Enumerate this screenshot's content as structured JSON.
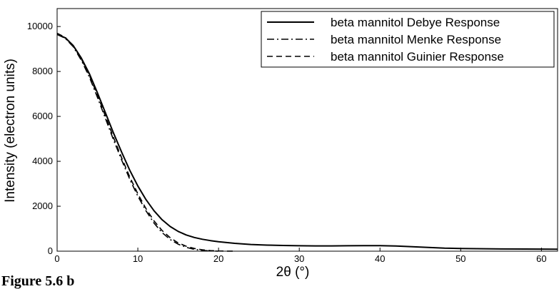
{
  "caption": "Figure 5.6 b",
  "chart_data": {
    "type": "line",
    "xlabel": "2θ (°)",
    "ylabel": "Intensity (electron units)",
    "xlim": [
      0,
      62
    ],
    "ylim": [
      0,
      10800
    ],
    "x_ticks": [
      0,
      10,
      20,
      30,
      40,
      50,
      60
    ],
    "y_ticks": [
      0,
      2000,
      4000,
      6000,
      8000,
      10000
    ],
    "grid": false,
    "legend_position": "top-right",
    "series": [
      {
        "name": "beta mannitol Debye Response",
        "style": "solid",
        "x": [
          0,
          1,
          2,
          3,
          4,
          5,
          6,
          7,
          8,
          9,
          10,
          11,
          12,
          13,
          14,
          15,
          16,
          17,
          18,
          19,
          20,
          22,
          24,
          26,
          28,
          30,
          32,
          34,
          36,
          38,
          40,
          42,
          44,
          46,
          48,
          50,
          52,
          55,
          58,
          62
        ],
        "values": [
          9650,
          9500,
          9150,
          8600,
          7900,
          7050,
          6150,
          5250,
          4400,
          3600,
          2900,
          2300,
          1800,
          1400,
          1100,
          880,
          720,
          610,
          530,
          470,
          420,
          350,
          300,
          270,
          255,
          240,
          235,
          235,
          240,
          245,
          245,
          230,
          200,
          165,
          135,
          120,
          110,
          100,
          95,
          90
        ]
      },
      {
        "name": "beta mannitol Menke Response",
        "style": "dashdot",
        "x": [
          0,
          1,
          2,
          3,
          4,
          5,
          6,
          7,
          8,
          9,
          10,
          11,
          12,
          13,
          14,
          15,
          16,
          17,
          18,
          19,
          20
        ],
        "values": [
          9650,
          9480,
          9100,
          8500,
          7750,
          6850,
          5900,
          4950,
          4050,
          3200,
          2450,
          1800,
          1250,
          830,
          520,
          310,
          170,
          80,
          35,
          12,
          0
        ]
      },
      {
        "name": "beta mannitol Guinier Response",
        "style": "dashed",
        "x": [
          0,
          1,
          2,
          3,
          4,
          5,
          6,
          7,
          8,
          9,
          10,
          11,
          12,
          13,
          14,
          15,
          16,
          17,
          18,
          19,
          20,
          21,
          22
        ],
        "values": [
          9700,
          9520,
          9140,
          8560,
          7820,
          6950,
          6000,
          5050,
          4150,
          3300,
          2550,
          1900,
          1350,
          920,
          600,
          370,
          220,
          120,
          60,
          25,
          10,
          3,
          0
        ]
      }
    ]
  }
}
